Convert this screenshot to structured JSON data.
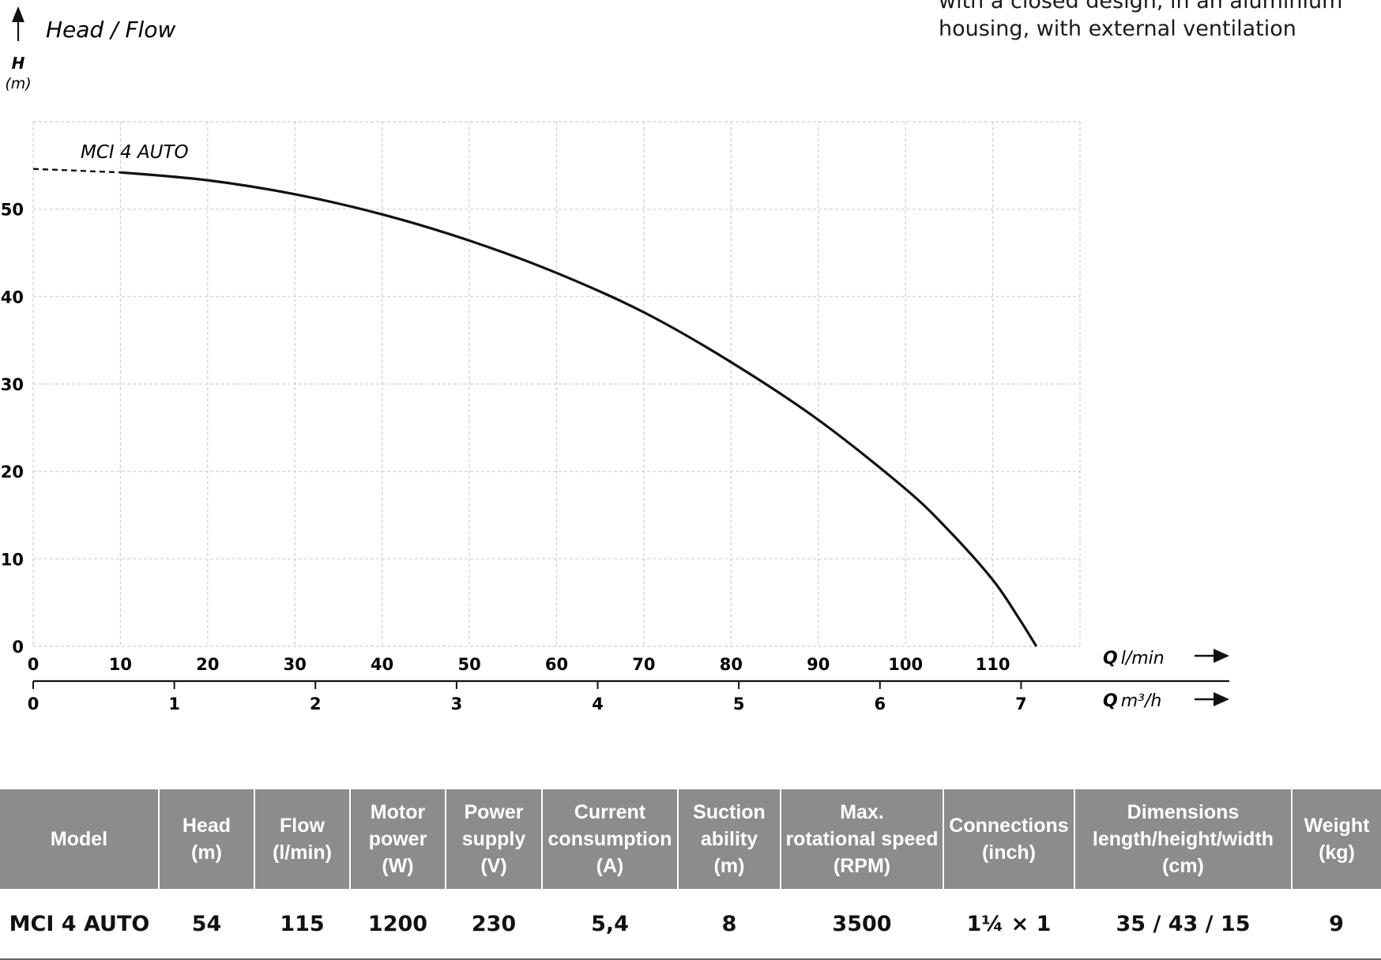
{
  "description": {
    "lines": [
      "with a closed design, in an aluminium",
      "housing, with external ventilation"
    ]
  },
  "chart_data": {
    "type": "line",
    "title": "Head / Flow",
    "y_axis": {
      "label": "H",
      "unit": "(m)",
      "range": [
        0,
        60
      ],
      "ticks": [
        0,
        10,
        20,
        30,
        40,
        50
      ]
    },
    "x_axis": {
      "label": "Q",
      "unit": "l/min",
      "range": [
        0,
        120
      ],
      "ticks": [
        0,
        10,
        20,
        30,
        40,
        50,
        60,
        70,
        80,
        90,
        100,
        110
      ]
    },
    "x2_axis": {
      "label": "Q",
      "unit": "m³/h",
      "range": [
        0,
        7.2
      ],
      "ticks": [
        0,
        1,
        2,
        3,
        4,
        5,
        6,
        7
      ]
    },
    "grid": true,
    "series": [
      {
        "name": "MCI 4 AUTO",
        "dashed_segment": [
          [
            0,
            54.6
          ],
          [
            10,
            54.2
          ]
        ],
        "points": [
          [
            10,
            54.2
          ],
          [
            20,
            53.3
          ],
          [
            30,
            51.7
          ],
          [
            40,
            49.4
          ],
          [
            50,
            46.4
          ],
          [
            60,
            42.7
          ],
          [
            70,
            38.2
          ],
          [
            80,
            32.5
          ],
          [
            90,
            25.9
          ],
          [
            100,
            18.0
          ],
          [
            105,
            13.2
          ],
          [
            110,
            7.6
          ],
          [
            113,
            3.2
          ],
          [
            115,
            0
          ]
        ]
      }
    ]
  },
  "table": {
    "headers": [
      [
        "Model"
      ],
      [
        "Head",
        "(m)"
      ],
      [
        "Flow",
        "(l/min)"
      ],
      [
        "Motor",
        "power",
        "(W)"
      ],
      [
        "Power",
        "supply",
        "(V)"
      ],
      [
        "Current",
        "consumption",
        "(A)"
      ],
      [
        "Suction",
        "ability",
        "(m)"
      ],
      [
        "Max.",
        "rotational speed",
        "(RPM)"
      ],
      [
        "Connections",
        "(inch)"
      ],
      [
        "Dimensions",
        "length/height/width",
        "(cm)"
      ],
      [
        "Weight",
        "(kg)"
      ]
    ],
    "rows": [
      [
        "MCI 4 AUTO",
        "54",
        "115",
        "1200",
        "230",
        "5,4",
        "8",
        "3500",
        "1¼ × 1",
        "35 / 43 / 15",
        "9"
      ]
    ]
  }
}
